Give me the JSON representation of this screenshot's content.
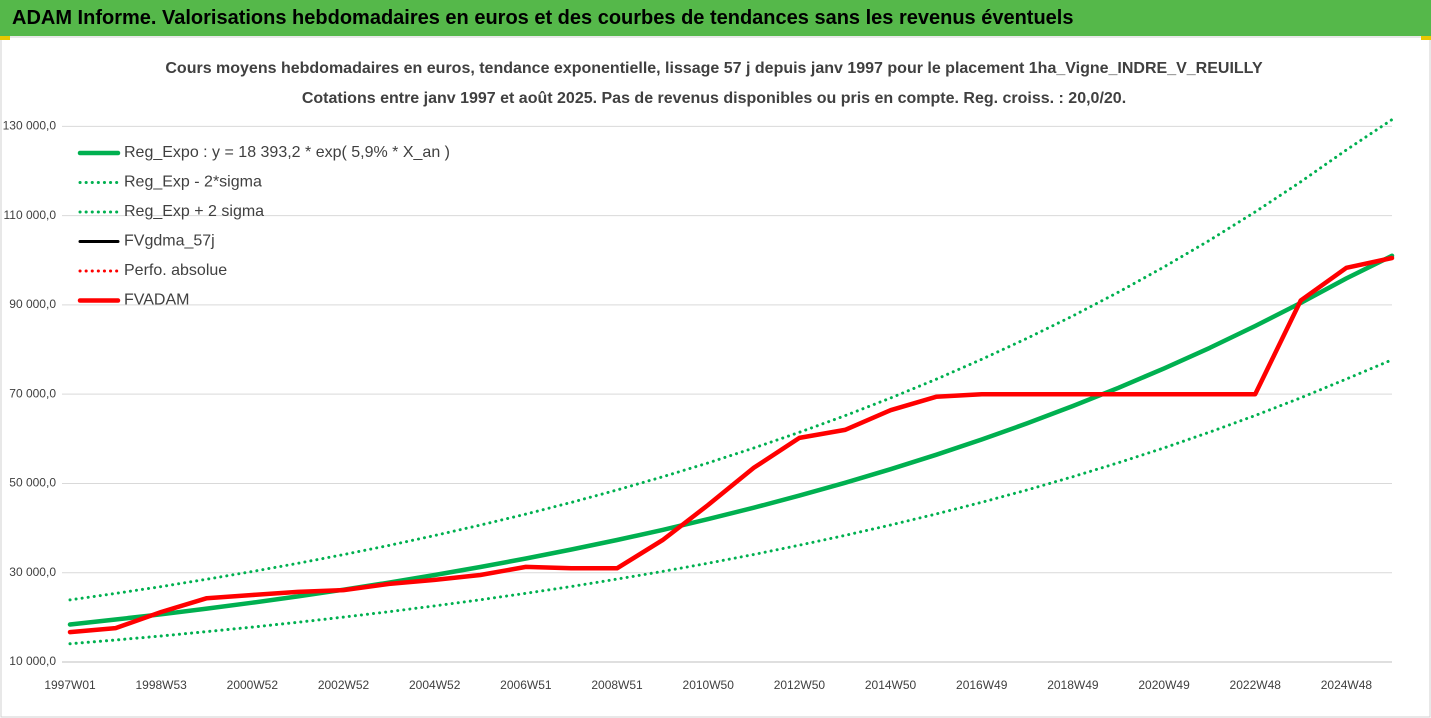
{
  "header": {
    "title": "ADAM Informe. Valorisations hebdomadaires en euros et des courbes de tendances sans les revenus éventuels"
  },
  "chart_data": {
    "type": "line",
    "title": "Cours moyens hebdomadaires en euros, tendance exponentielle, lissage 57 j depuis janv 1997 pour le placement 1ha_Vigne_INDRE_V_REUILLY",
    "subtitle": "Cotations entre janv 1997 et août 2025. Pas de revenus disponibles ou pris en compte. Reg. croiss. : 20,0/20.",
    "categories": [
      "1997W01",
      null,
      "1998W53",
      null,
      "2000W52",
      null,
      "2002W52",
      null,
      "2004W52",
      null,
      "2006W51",
      null,
      "2008W51",
      null,
      "2010W50",
      null,
      "2012W50",
      null,
      "2014W50",
      null,
      "2016W49",
      null,
      "2018W49",
      null,
      "2020W49",
      null,
      "2022W48",
      null,
      "2024W48",
      null
    ],
    "ylim": [
      10000,
      135000
    ],
    "yticks": [
      {
        "value": 10000,
        "label": "10 000,0"
      },
      {
        "value": 30000,
        "label": "30 000,0"
      },
      {
        "value": 50000,
        "label": "50 000,0"
      },
      {
        "value": 70000,
        "label": "70 000,0"
      },
      {
        "value": 90000,
        "label": "90 000,0"
      },
      {
        "value": 110000,
        "label": "110 000,0"
      },
      {
        "value": 130000,
        "label": "130 000,0"
      }
    ],
    "grid": true,
    "legend": "upper-left",
    "series": [
      {
        "name": "Reg_Expo : y = 18 393,2 * exp( 5,9% *  X_an )",
        "color": "#00b050",
        "dash": "solid",
        "values": [
          18393,
          19511,
          20696,
          21954,
          23288,
          24703,
          26204,
          27796,
          29485,
          31277,
          33177,
          35193,
          37332,
          39600,
          42006,
          44559,
          47266,
          50138,
          53185,
          56416,
          59845,
          63481,
          67338,
          71430,
          75770,
          80374,
          85258,
          90438,
          95934,
          101000
        ]
      },
      {
        "name": "Reg_Exp - 2*sigma",
        "color": "#00b050",
        "dash": "dot",
        "values": [
          14070,
          14930,
          15830,
          16800,
          17820,
          18900,
          20050,
          21260,
          22560,
          23930,
          25380,
          26920,
          28560,
          30290,
          32130,
          34090,
          36160,
          38360,
          40690,
          43160,
          45780,
          48560,
          51510,
          54640,
          57960,
          61490,
          65220,
          69190,
          73390,
          77700
        ]
      },
      {
        "name": "Reg_Exp + 2 sigma",
        "color": "#00b050",
        "dash": "dot",
        "values": [
          23910,
          25360,
          26900,
          28540,
          30270,
          32110,
          34070,
          36130,
          38330,
          40660,
          43130,
          45750,
          48530,
          51480,
          54610,
          57930,
          61450,
          65180,
          69140,
          73340,
          77800,
          82530,
          87540,
          92860,
          98500,
          104490,
          110840,
          117570,
          124710,
          131500
        ]
      },
      {
        "name": "FVgdma_57j",
        "color": "#000000",
        "dash": "solid",
        "values": [
          16700,
          17600,
          21200,
          24300,
          25000,
          25700,
          26100,
          27500,
          28400,
          29500,
          31300,
          31000,
          31000,
          37300,
          45200,
          53500,
          60200,
          62000,
          66400,
          69400,
          70000,
          70000,
          70000,
          70000,
          70000,
          70000,
          70000,
          91000,
          98300,
          100500
        ]
      },
      {
        "name": "Perfo. absolue",
        "color": "#ff0000",
        "dash": "dot",
        "values": [
          16700,
          17600,
          21200,
          24300,
          25000,
          25700,
          26100,
          27500,
          28400,
          29500,
          31300,
          31000,
          31000,
          37300,
          45200,
          53500,
          60200,
          62000,
          66400,
          69400,
          70000,
          70000,
          70000,
          70000,
          70000,
          70000,
          70000,
          91000,
          98300,
          100500
        ]
      },
      {
        "name": "FVADAM",
        "color": "#ff0000",
        "dash": "solid",
        "values": [
          16700,
          17600,
          21200,
          24300,
          25000,
          25700,
          26100,
          27500,
          28400,
          29500,
          31300,
          31000,
          31000,
          37300,
          45200,
          53500,
          60200,
          62000,
          66400,
          69400,
          70000,
          70000,
          70000,
          70000,
          70000,
          70000,
          70000,
          91000,
          98300,
          100500
        ]
      }
    ]
  }
}
